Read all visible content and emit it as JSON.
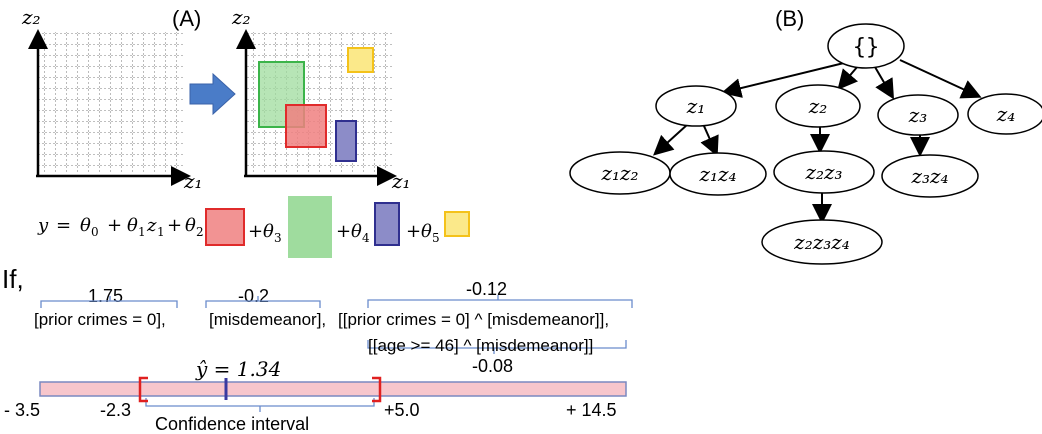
{
  "panel_a": {
    "label": "(A)",
    "axis_y": "z₂",
    "axis_x": "z₁",
    "axis_y_right": "z₂",
    "axis_x_right": "z₁",
    "colors": {
      "green": "#5cc46a",
      "green_fill": "#9fdc9e",
      "red": "#e83a3a",
      "red_fill": "#f08080",
      "blue": "#2f2f8f",
      "blue_fill": "#8c8cc8",
      "yellow": "#f4c21a",
      "yellow_fill": "#fbe98a",
      "arrow": "#4a7cc8"
    },
    "equation": {
      "y": "y",
      "eq": "=",
      "theta0": "θ",
      "sub0": "0",
      "plus1": "+",
      "theta1": "θ",
      "sub1": "1",
      "z1": "z",
      "zsub1": "1",
      "plus2": "+",
      "theta2": "θ",
      "sub2": "2",
      "plus3": "+",
      "theta3": "θ",
      "sub3": "3",
      "plus4": "+",
      "theta4": "θ",
      "sub4": "4",
      "plus5": "+",
      "theta5": "θ",
      "sub5": "5"
    }
  },
  "panel_b": {
    "label": "(B)",
    "root": "{}",
    "nodes": {
      "z1": "z₁",
      "z2": "z₂",
      "z3": "z₃",
      "z4": "z₄",
      "z1z2": "z₁z₂",
      "z1z4": "z₁z₄",
      "z2z3": "z₂z₃",
      "z3z4": "z₃z₄",
      "z2z3z4": "z₂z₃z₄"
    }
  },
  "rules": {
    "if_label": "If,",
    "coef_prior": "1.75",
    "coef_misd": "-0.2",
    "coef_combo": "-0.12",
    "coef_age": "-0.08",
    "rule_prior": "[prior crimes = 0],",
    "rule_misd": "[misdemeanor],",
    "rule_combo": "[[prior crimes = 0] ^ [misdemeanor]],",
    "rule_age": "[[age >= 46] ^ [misdemeanor]]",
    "prediction": "ŷ = 1.34",
    "ci_label": "Confidence interval",
    "ticks": {
      "min": "- 3.5",
      "ci_low": "-2.3",
      "ci_high": "+5.0",
      "max": "+ 14.5"
    },
    "colors": {
      "bar": "#f7c6cc",
      "bar_border": "#7a88c0",
      "bracket": "#e02020",
      "marker": "#3a3aa0",
      "brace": "#6a8ccc"
    }
  }
}
